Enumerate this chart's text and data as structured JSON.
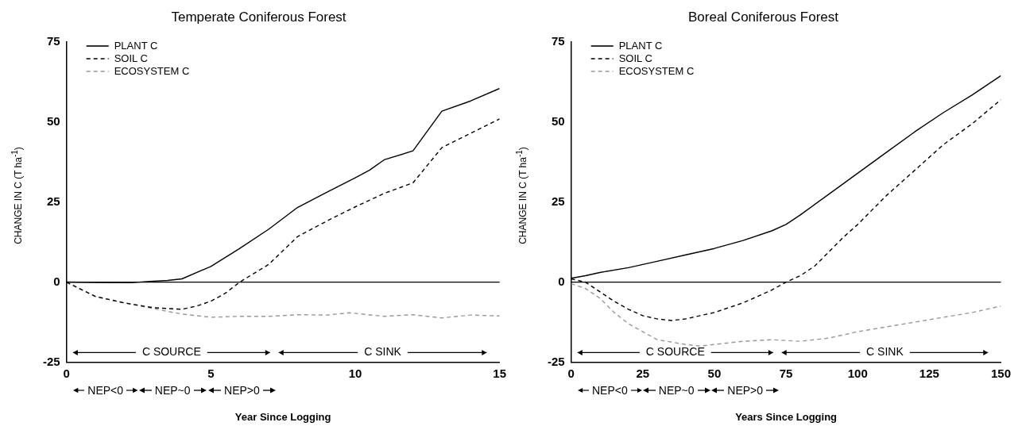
{
  "chart_data": [
    {
      "type": "line",
      "title": "Temperate Coniferous Forest",
      "xlabel": "Year Since Logging",
      "ylabel": "CHANGE IN C (T ha$^{-1}$)",
      "xlim": [
        0,
        15
      ],
      "xticks": [
        0,
        5,
        10,
        15
      ],
      "ylim": [
        -25,
        75
      ],
      "yticks": [
        -25,
        0,
        25,
        50,
        75
      ],
      "legend": "top left",
      "ref_lines": [
        {
          "axis": "y",
          "value": 0,
          "color": "#000000",
          "line_style": "solid"
        }
      ],
      "annotations": [
        "C SOURCE",
        "C SINK",
        "NEP<0",
        "NEP~0",
        "NEP>0"
      ],
      "series": [
        {
          "name": "PLANT C",
          "color": "#000000",
          "line_style": "solid",
          "x": [
            0,
            1,
            2.2,
            3,
            3.5,
            4,
            5,
            6,
            7,
            8,
            9,
            10,
            10.5,
            11,
            12,
            13,
            14,
            15
          ],
          "values": [
            0,
            -0.1,
            -0.2,
            0.3,
            0.5,
            1,
            4.9,
            10.5,
            16.5,
            23.3,
            28,
            32.6,
            35,
            38.2,
            41,
            53.4,
            56.6,
            60.5
          ]
        },
        {
          "name": "SOIL C",
          "color": "#000000",
          "line_style": "dashed",
          "x": [
            0,
            1,
            2,
            3,
            4,
            4.5,
            5,
            5.5,
            6,
            7,
            8,
            9,
            10,
            11,
            12,
            13,
            14,
            15
          ],
          "values": [
            0,
            -4.5,
            -6.5,
            -8,
            -8.5,
            -7.5,
            -6,
            -3.5,
            0,
            5.5,
            14.2,
            19,
            23.5,
            27.7,
            31,
            42,
            46.5,
            51
          ]
        },
        {
          "name": "ECOSYSTEM C",
          "color": "#999999",
          "line_style": "dashed",
          "x": [
            0,
            1,
            2,
            3,
            4,
            5,
            6,
            7,
            8,
            9,
            9.8,
            11,
            12,
            13,
            14,
            15
          ],
          "values": [
            0,
            -4.5,
            -6.5,
            -8.3,
            -10,
            -11,
            -10.7,
            -10.7,
            -10.2,
            -10.3,
            -9.6,
            -10.7,
            -10.2,
            -11.2,
            -10.3,
            -10.6
          ]
        }
      ]
    },
    {
      "type": "line",
      "title": "Boreal Coniferous Forest",
      "xlabel": "Years Since Logging",
      "ylabel": "CHANGE IN C (T ha$^{-1}$)",
      "xlim": [
        0,
        150
      ],
      "xticks": [
        0,
        25,
        50,
        75,
        100,
        125,
        150
      ],
      "ylim": [
        -25,
        75
      ],
      "yticks": [
        -25,
        0,
        25,
        50,
        75
      ],
      "legend": "top left",
      "ref_lines": [
        {
          "axis": "y",
          "value": 0,
          "color": "#000000",
          "line_style": "solid"
        }
      ],
      "annotations": [
        "C SOURCE",
        "C SINK",
        "NEP<0",
        "NEP~0",
        "NEP>0"
      ],
      "series": [
        {
          "name": "PLANT C",
          "color": "#000000",
          "line_style": "solid",
          "x": [
            0,
            5,
            10,
            20,
            30,
            40,
            50,
            60,
            70,
            75,
            80,
            90,
            100,
            110,
            120,
            130,
            140,
            150
          ],
          "values": [
            1.2,
            2,
            3,
            4.5,
            6.5,
            8.5,
            10.5,
            13,
            16,
            18,
            21,
            27.5,
            34,
            40.5,
            47,
            53,
            58.5,
            64.5
          ]
        },
        {
          "name": "SOIL C",
          "color": "#000000",
          "line_style": "dashed",
          "x": [
            0,
            5,
            10,
            15,
            20,
            25,
            30,
            35,
            40,
            45,
            50,
            55,
            60,
            65,
            70,
            75,
            80,
            85,
            90,
            95,
            100,
            110,
            120,
            130,
            140,
            150
          ],
          "values": [
            1,
            0,
            -3,
            -6,
            -8.5,
            -10.5,
            -11.5,
            -12,
            -11.5,
            -10.5,
            -9.5,
            -8,
            -6.5,
            -4.5,
            -2.5,
            0,
            2,
            5,
            9.5,
            14,
            18,
            27,
            35,
            43,
            49.5,
            57
          ]
        },
        {
          "name": "ECOSYSTEM C",
          "color": "#999999",
          "line_style": "dashed",
          "x": [
            0,
            5,
            10,
            15,
            20,
            25,
            30,
            40,
            45,
            50,
            60,
            70,
            80,
            90,
            100,
            110,
            120,
            130,
            140,
            150
          ],
          "values": [
            -0.5,
            -2,
            -5,
            -9.5,
            -13,
            -15.5,
            -18,
            -19.5,
            -20,
            -19.5,
            -18.5,
            -18,
            -18.5,
            -17.5,
            -15.5,
            -14,
            -12.5,
            -11,
            -9.5,
            -7.5
          ]
        }
      ]
    }
  ]
}
